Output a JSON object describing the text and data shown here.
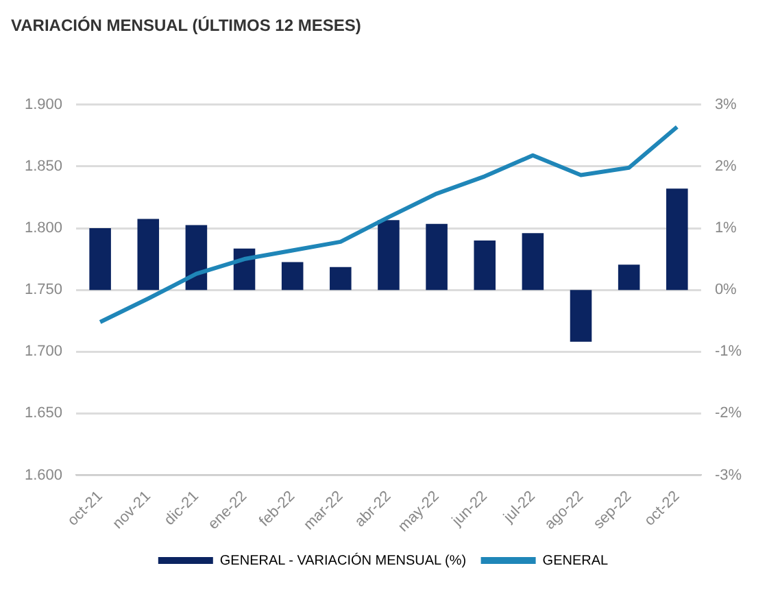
{
  "chart_data": {
    "type": "bar",
    "title": "VARIACIÓN MENSUAL (ÚLTIMOS 12 MESES)",
    "categories": [
      "oct-21",
      "nov-21",
      "dic-21",
      "ene-22",
      "feb-22",
      "mar-22",
      "abr-22",
      "may-22",
      "jun-22",
      "jul-22",
      "ago-22",
      "sep-22",
      "oct-22"
    ],
    "series": [
      {
        "name": "GENERAL - VARIACIÓN MENSUAL (%)",
        "axis": "y2",
        "color": "#0b2461",
        "values": [
          1.0,
          1.15,
          1.05,
          0.67,
          0.45,
          0.37,
          1.13,
          1.07,
          0.8,
          0.92,
          -0.84,
          0.41,
          1.64
        ]
      },
      {
        "name": "GENERAL",
        "type": "line",
        "axis": "y",
        "color": "#1f86b8",
        "values": [
          1724,
          1743,
          1763,
          1775,
          1782,
          1789,
          1809,
          1828,
          1842,
          1859,
          1843,
          1849,
          1882
        ]
      }
    ],
    "ylim": [
      1600,
      1900
    ],
    "yticks": [
      {
        "value": 1600,
        "label": "1.600"
      },
      {
        "value": 1650,
        "label": "1.650"
      },
      {
        "value": 1700,
        "label": "1.700"
      },
      {
        "value": 1750,
        "label": "1.750"
      },
      {
        "value": 1800,
        "label": "1.800"
      },
      {
        "value": 1850,
        "label": "1.850"
      },
      {
        "value": 1900,
        "label": "1.900"
      }
    ],
    "y2lim": [
      -3,
      3
    ],
    "y2ticks": [
      {
        "value": -3,
        "label": "-3%"
      },
      {
        "value": -2,
        "label": "-2%"
      },
      {
        "value": -1,
        "label": "-1%"
      },
      {
        "value": 0,
        "label": "0%"
      },
      {
        "value": 1,
        "label": "1%"
      },
      {
        "value": 2,
        "label": "2%"
      },
      {
        "value": 3,
        "label": "3%"
      }
    ],
    "grid": "y",
    "legend": "bottom",
    "marker": "none",
    "line_style": "solid"
  }
}
